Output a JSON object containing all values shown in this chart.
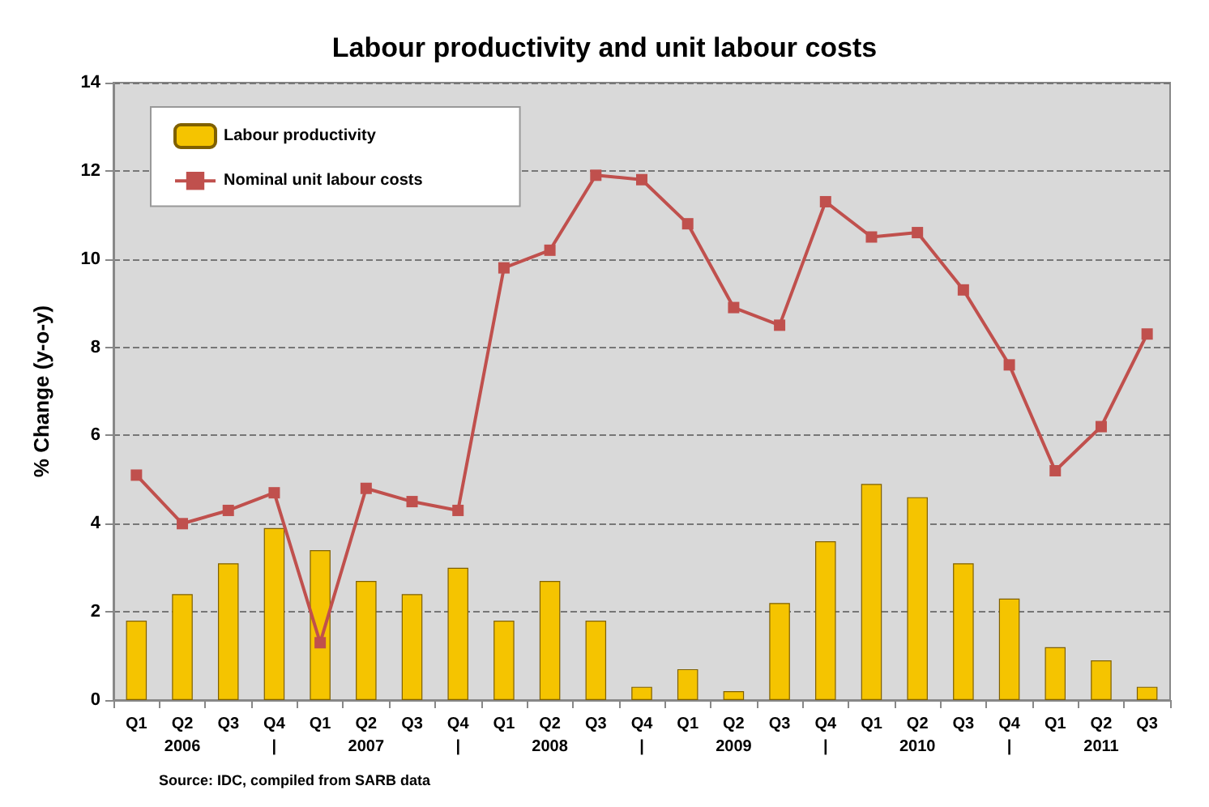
{
  "chart_data": {
    "type": "bar",
    "title": "Labour productivity and unit labour costs",
    "ylabel": "% Change (y-o-y)",
    "categories": [
      "Q1",
      "Q2\n2006",
      "Q3",
      "Q4\n|",
      "Q1",
      "Q2\n2007",
      "Q3",
      "Q4\n|",
      "Q1",
      "Q2\n2008",
      "Q3",
      "Q4\n|",
      "Q1",
      "Q2\n2009",
      "Q3",
      "Q4\n|",
      "Q1",
      "Q2\n2010",
      "Q3",
      "Q4\n|",
      "Q1",
      "Q2\n2011",
      "Q3"
    ],
    "series": [
      {
        "name": "Labour productivity",
        "color": "#f5c400",
        "values": [
          1.8,
          2.4,
          3.1,
          3.9,
          3.4,
          2.7,
          2.4,
          3.0,
          1.8,
          2.7,
          1.8,
          0.3,
          0.7,
          0.2,
          2.2,
          3.6,
          4.9,
          4.6,
          3.1,
          2.3,
          1.2,
          0.9,
          0.3
        ]
      },
      {
        "name": "Nominal unit labour costs",
        "type": "line",
        "color": "#c0504d",
        "values": [
          5.1,
          4.0,
          4.3,
          4.7,
          1.3,
          4.8,
          4.5,
          4.3,
          9.8,
          10.2,
          11.9,
          11.8,
          10.8,
          8.9,
          8.5,
          11.3,
          10.5,
          10.6,
          9.3,
          7.6,
          5.2,
          6.2,
          8.3
        ]
      }
    ],
    "ylim": [
      0,
      14
    ],
    "yticks": [
      0,
      2,
      4,
      6,
      8,
      10,
      12,
      14
    ],
    "grid": "y",
    "legend": "top left",
    "marker": "square",
    "line_style": "solid",
    "annotations": [
      "Source: IDC, compiled from SARB data"
    ]
  }
}
